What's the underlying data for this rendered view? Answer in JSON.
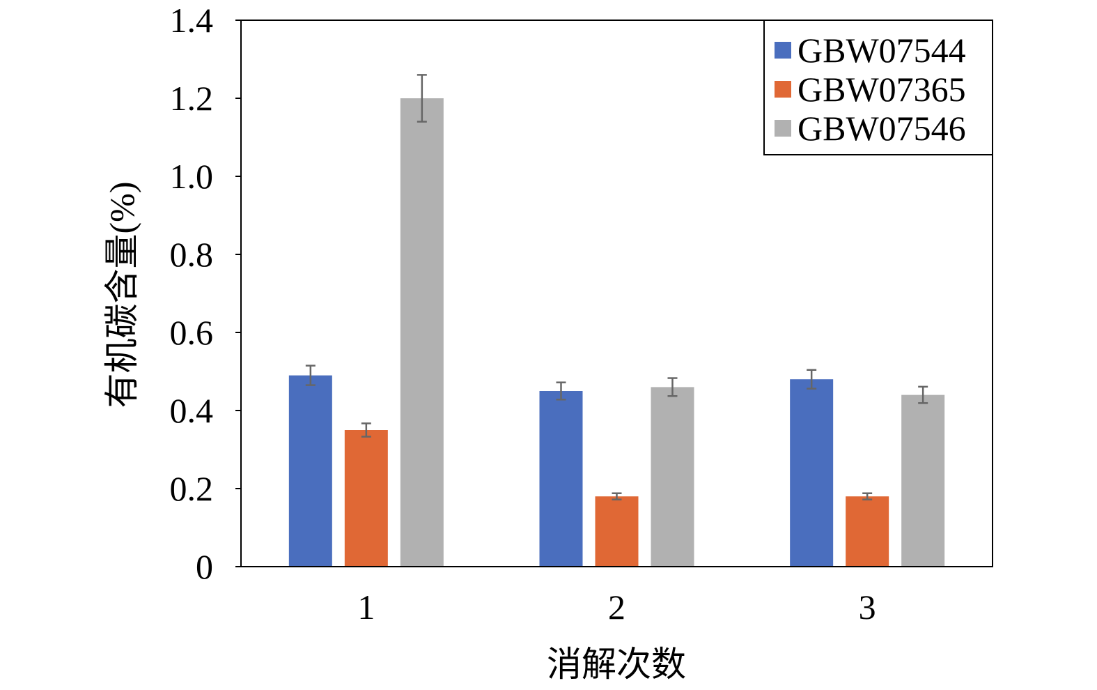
{
  "chart_data": {
    "type": "bar",
    "title": "",
    "xlabel": "消解次数",
    "ylabel": "有机碳含量(%)",
    "categories": [
      "1",
      "2",
      "3"
    ],
    "ylim": [
      0,
      1.4
    ],
    "yticks": [
      0,
      0.2,
      0.4,
      0.6,
      0.8,
      1.0,
      1.2,
      1.4
    ],
    "ytick_labels": [
      "0",
      "0.2",
      "0.4",
      "0.6",
      "0.8",
      "1.0",
      "1.2",
      "1.4"
    ],
    "grid": false,
    "legend_position": "top-right",
    "series": [
      {
        "name": "GBW07544",
        "color": "#4a6ebe",
        "values": [
          0.49,
          0.45,
          0.48
        ],
        "errors": [
          0.025,
          0.022,
          0.024
        ]
      },
      {
        "name": "GBW07365",
        "color": "#e06835",
        "values": [
          0.35,
          0.18,
          0.18
        ],
        "errors": [
          0.017,
          0.008,
          0.008
        ]
      },
      {
        "name": "GBW07546",
        "color": "#b1b1b1",
        "values": [
          1.2,
          0.46,
          0.44
        ],
        "errors": [
          0.06,
          0.023,
          0.021
        ]
      }
    ],
    "error_bar_color": "#666666",
    "axis_color": "#000000"
  }
}
